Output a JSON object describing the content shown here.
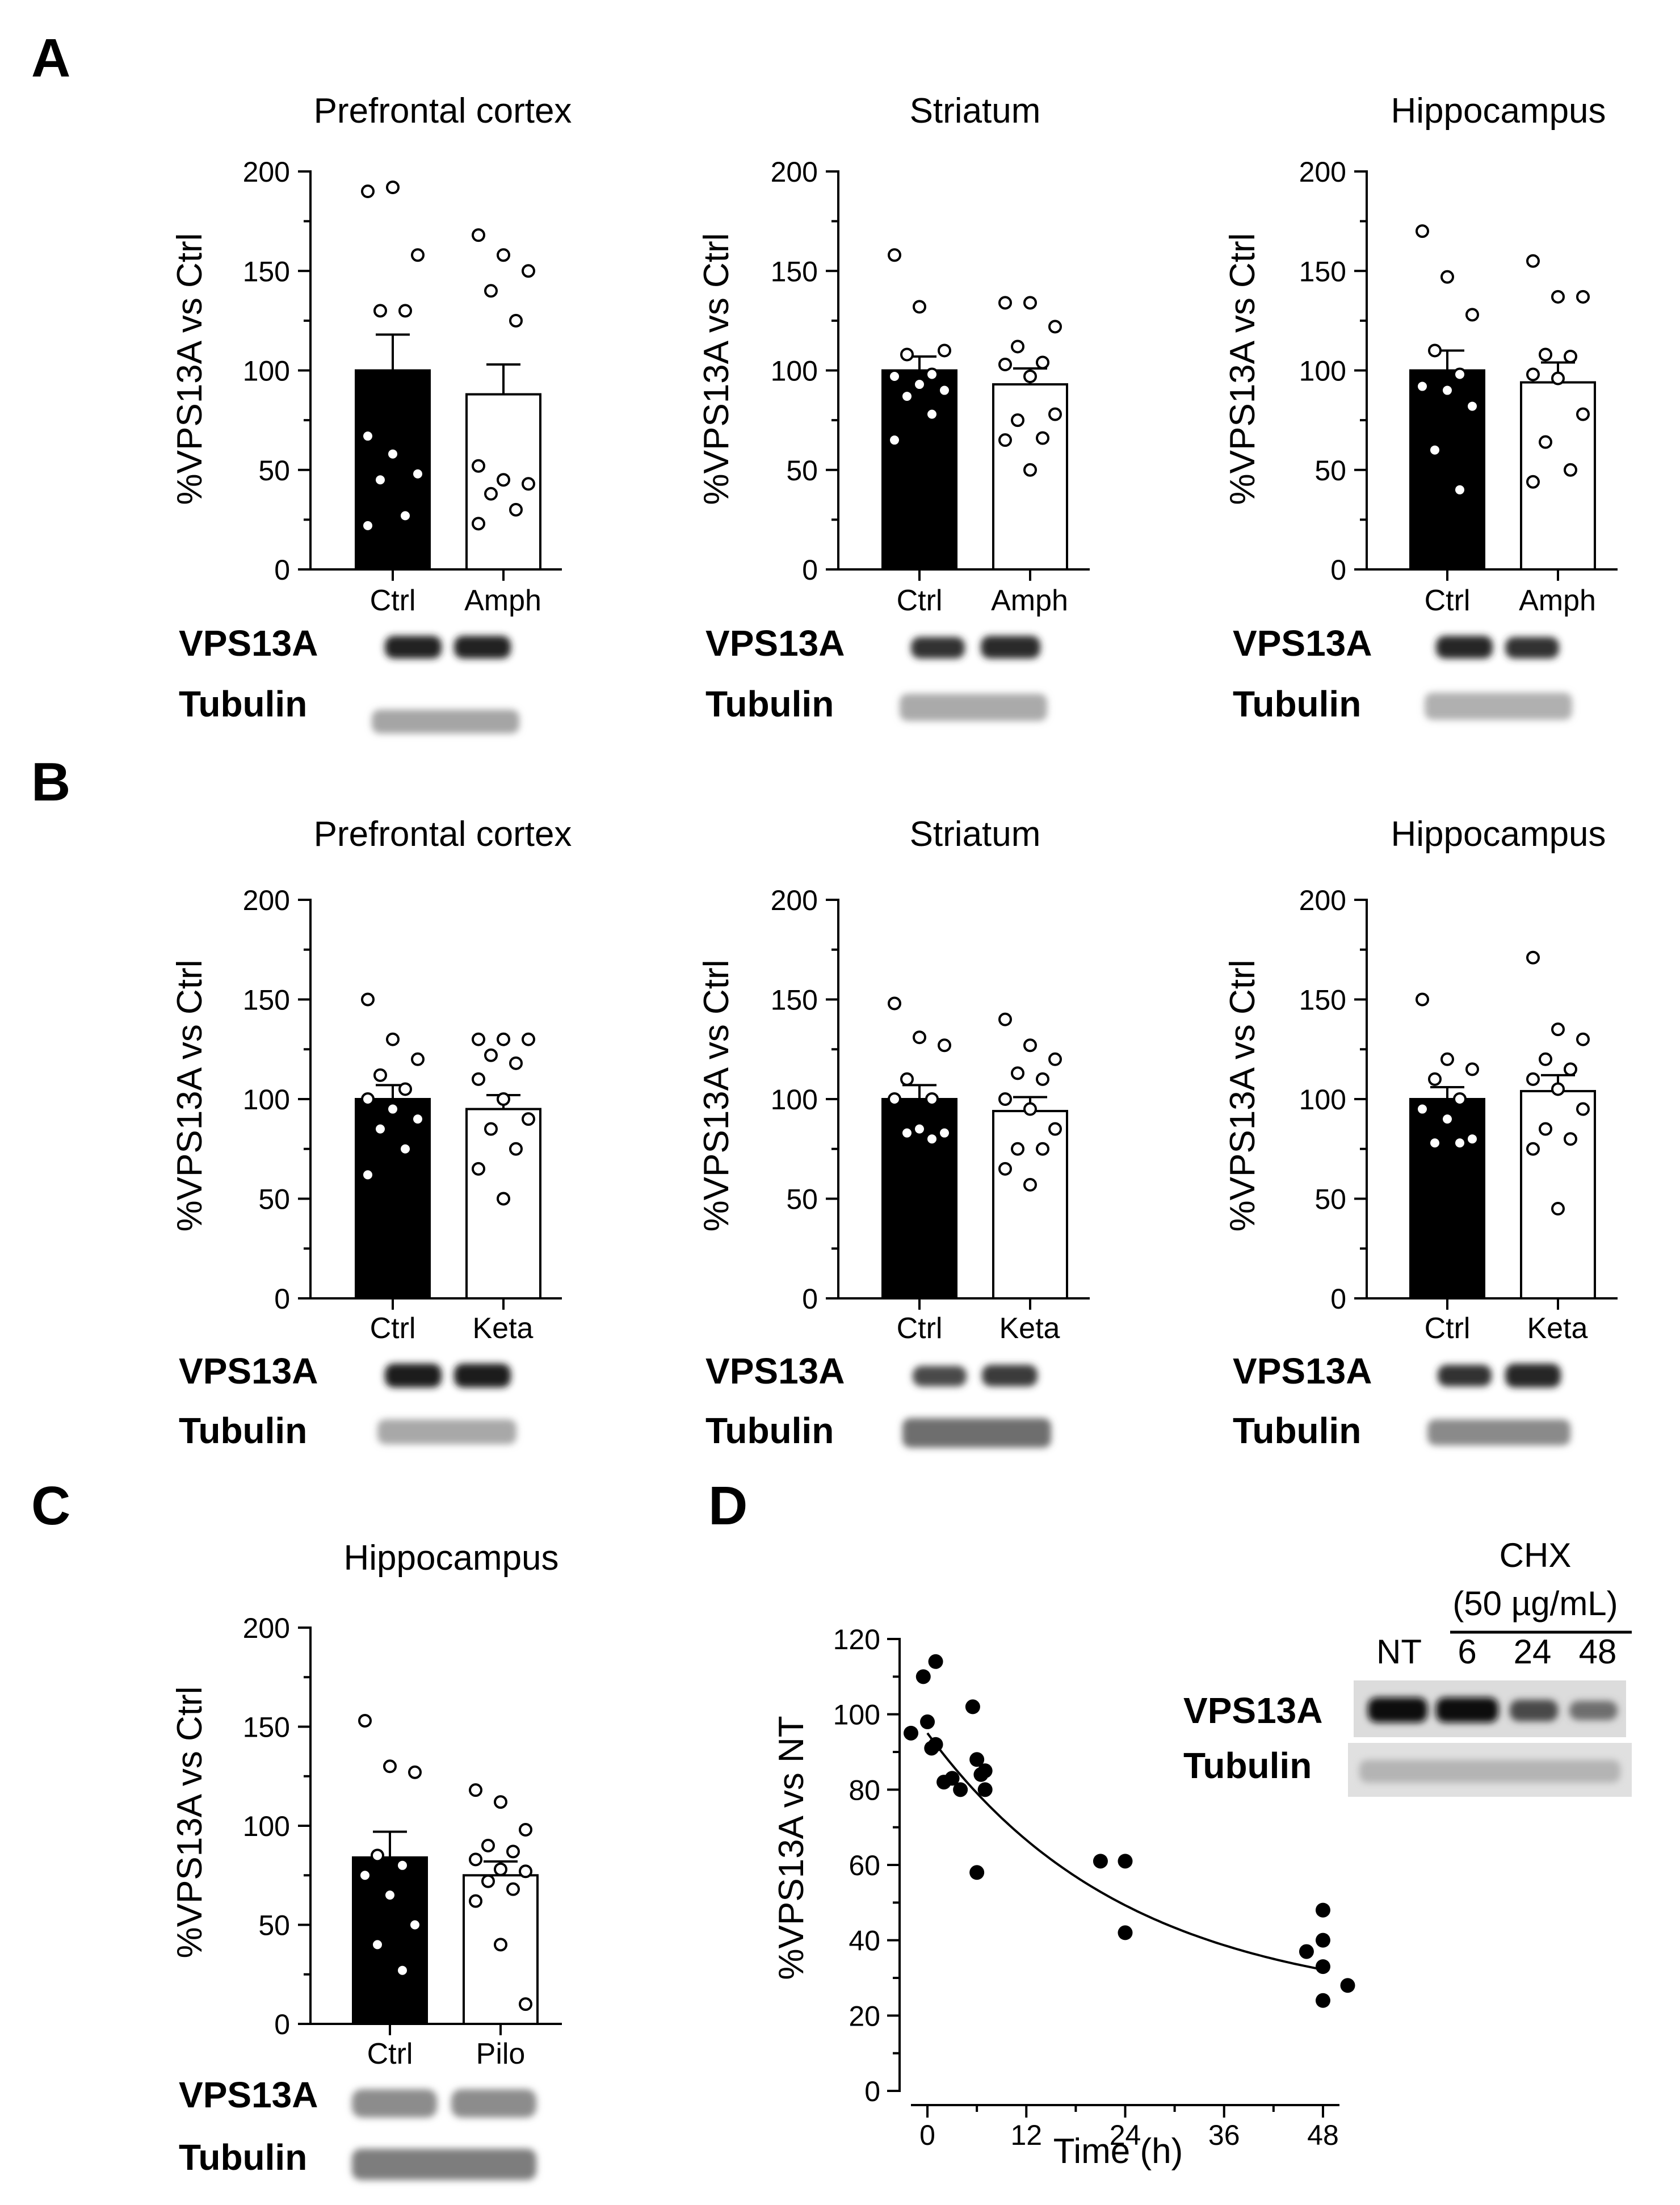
{
  "panel_letters": [
    "A",
    "B",
    "C",
    "D"
  ],
  "blot_labels": {
    "target": "VPS13A",
    "loading": "Tubulin"
  },
  "chart_data": [
    {
      "id": "A1",
      "type": "bar",
      "title": "Prefrontal cortex",
      "ylabel": "%VPS13A vs Ctrl",
      "categories": [
        "Ctrl",
        "Amph"
      ],
      "values": [
        100,
        88
      ],
      "sem": [
        18,
        15
      ],
      "ylim": [
        0,
        200
      ],
      "yticks": [
        0,
        50,
        100,
        150,
        200
      ],
      "points": [
        [
          190,
          192,
          158,
          130,
          130,
          67,
          58,
          48,
          45,
          27,
          22
        ],
        [
          168,
          158,
          150,
          140,
          125,
          52,
          45,
          43,
          38,
          30,
          23
        ]
      ]
    },
    {
      "id": "A2",
      "type": "bar",
      "title": "Striatum",
      "ylabel": "%VPS13A vs Ctrl",
      "categories": [
        "Ctrl",
        "Amph"
      ],
      "values": [
        100,
        93
      ],
      "sem": [
        7,
        8
      ],
      "ylim": [
        0,
        200
      ],
      "yticks": [
        0,
        50,
        100,
        150,
        200
      ],
      "points": [
        [
          158,
          132,
          110,
          108,
          98,
          97,
          93,
          90,
          87,
          78,
          65
        ],
        [
          134,
          134,
          122,
          112,
          104,
          103,
          97,
          78,
          75,
          66,
          65,
          50
        ]
      ]
    },
    {
      "id": "A3",
      "type": "bar",
      "title": "Hippocampus",
      "ylabel": "%VPS13A vs Ctrl",
      "categories": [
        "Ctrl",
        "Amph"
      ],
      "values": [
        100,
        94
      ],
      "sem": [
        10,
        10
      ],
      "ylim": [
        0,
        200
      ],
      "yticks": [
        0,
        50,
        100,
        150,
        200
      ],
      "points": [
        [
          170,
          147,
          128,
          110,
          98,
          92,
          90,
          82,
          60,
          40
        ],
        [
          155,
          137,
          137,
          108,
          107,
          98,
          96,
          78,
          64,
          50,
          44
        ]
      ]
    },
    {
      "id": "B1",
      "type": "bar",
      "title": "Prefrontal cortex",
      "ylabel": "%VPS13A vs Ctrl",
      "categories": [
        "Ctrl",
        "Keta"
      ],
      "values": [
        100,
        95
      ],
      "sem": [
        7,
        7
      ],
      "ylim": [
        0,
        200
      ],
      "yticks": [
        0,
        50,
        100,
        150,
        200
      ],
      "points": [
        [
          150,
          130,
          120,
          112,
          105,
          100,
          95,
          90,
          85,
          75,
          62
        ],
        [
          130,
          130,
          130,
          122,
          118,
          110,
          100,
          90,
          85,
          75,
          65,
          50
        ]
      ]
    },
    {
      "id": "B2",
      "type": "bar",
      "title": "Striatum",
      "ylabel": "%VPS13A vs Ctrl",
      "categories": [
        "Ctrl",
        "Keta"
      ],
      "values": [
        100,
        94
      ],
      "sem": [
        7,
        7
      ],
      "ylim": [
        0,
        200
      ],
      "yticks": [
        0,
        50,
        100,
        150,
        200
      ],
      "points": [
        [
          148,
          131,
          127,
          110,
          100,
          100,
          85,
          83,
          83,
          80
        ],
        [
          140,
          127,
          120,
          113,
          110,
          100,
          95,
          85,
          75,
          75,
          65,
          57
        ]
      ]
    },
    {
      "id": "B3",
      "type": "bar",
      "title": "Hippocampus",
      "ylabel": "%VPS13A vs Ctrl",
      "categories": [
        "Ctrl",
        "Keta"
      ],
      "values": [
        100,
        104
      ],
      "sem": [
        6,
        8
      ],
      "ylim": [
        0,
        200
      ],
      "yticks": [
        0,
        50,
        100,
        150,
        200
      ],
      "points": [
        [
          150,
          120,
          115,
          110,
          100,
          95,
          90,
          80,
          78,
          78
        ],
        [
          171,
          135,
          130,
          120,
          115,
          110,
          105,
          95,
          85,
          80,
          75,
          45
        ]
      ]
    },
    {
      "id": "C",
      "type": "bar",
      "title": "Hippocampus",
      "ylabel": "%VPS13A vs Ctrl",
      "categories": [
        "Ctrl",
        "Pilo"
      ],
      "values": [
        84,
        75
      ],
      "sem": [
        13,
        7
      ],
      "ylim": [
        0,
        200
      ],
      "yticks": [
        0,
        50,
        100,
        150,
        200
      ],
      "points": [
        [
          153,
          130,
          127,
          85,
          80,
          75,
          65,
          50,
          40,
          27
        ],
        [
          118,
          112,
          98,
          90,
          87,
          83,
          78,
          77,
          72,
          68,
          62,
          40,
          10
        ]
      ]
    },
    {
      "id": "D",
      "type": "scatter",
      "title": "",
      "ylabel": "%VPS13A vs NT",
      "xlabel": "Time (h)",
      "xlim": [
        -2,
        50
      ],
      "xticks": [
        0,
        12,
        24,
        36,
        48
      ],
      "ylim": [
        0,
        120
      ],
      "yticks": [
        0,
        20,
        40,
        60,
        80,
        100,
        120
      ],
      "x": [
        -2,
        -0.5,
        0,
        0.5,
        1,
        1,
        2,
        3,
        4,
        5.5,
        6,
        6,
        6.5,
        7,
        7,
        21,
        24,
        24,
        46,
        48,
        48,
        48,
        48,
        51
      ],
      "y": [
        95,
        110,
        98,
        91,
        114,
        92,
        82,
        83,
        80,
        102,
        88,
        58,
        84,
        80,
        85,
        61,
        61,
        42,
        37,
        48,
        40,
        33,
        24,
        28
      ],
      "fit": {
        "type": "one-phase decay",
        "y0": 95,
        "plateau": 22,
        "k": 0.041
      },
      "blot": {
        "group_label": "CHX",
        "dose_label": "(50 µg/mL)",
        "lanes": [
          "NT",
          "6",
          "24",
          "48"
        ]
      }
    }
  ]
}
